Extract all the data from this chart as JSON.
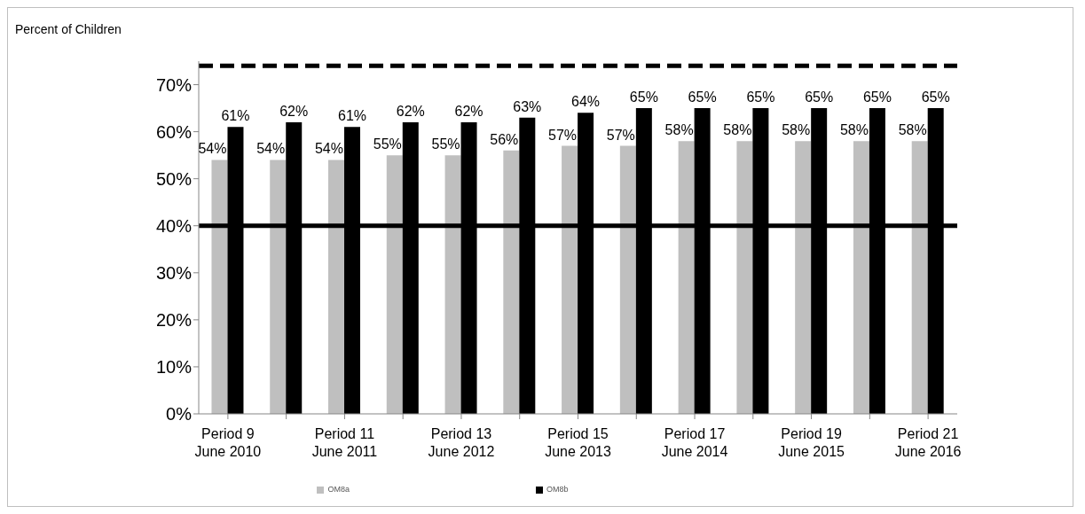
{
  "chart_data": {
    "type": "bar",
    "ylabel": "Percent of Children",
    "categories": [
      "Period 9\nJune 2010",
      null,
      "Period 11\nJune 2011",
      null,
      "Period 13\nJune 2012",
      null,
      "Period 15\nJune 2013",
      null,
      "Period 17\nJune 2014",
      null,
      "Period 19\nJune 2015",
      null,
      "Period 21\nJune 2016"
    ],
    "series": [
      {
        "name": "OM8a",
        "color": "#bfbfbf",
        "values": [
          54,
          54,
          54,
          55,
          55,
          56,
          57,
          57,
          58,
          58,
          58,
          58,
          58
        ],
        "value_labels": [
          "54%",
          "54%",
          "54%",
          "55%",
          "55%",
          "56%",
          "57%",
          "57%",
          "58%",
          "58%",
          "58%",
          "58%",
          "58%"
        ]
      },
      {
        "name": "OM8b",
        "color": "#000000",
        "values": [
          61,
          62,
          61,
          62,
          62,
          63,
          64,
          65,
          65,
          65,
          65,
          65,
          65
        ],
        "value_labels": [
          "61%",
          "62%",
          "61%",
          "62%",
          "62%",
          "63%",
          "64%",
          "65%",
          "65%",
          "65%",
          "65%",
          "65%",
          "65%"
        ]
      }
    ],
    "ylim": [
      0,
      75
    ],
    "yticks": [
      {
        "value": 0,
        "label": "0%"
      },
      {
        "value": 10,
        "label": "10%"
      },
      {
        "value": 20,
        "label": "20%"
      },
      {
        "value": 30,
        "label": "30%"
      },
      {
        "value": 40,
        "label": "40%"
      },
      {
        "value": 50,
        "label": "50%"
      },
      {
        "value": 60,
        "label": "60%"
      },
      {
        "value": 70,
        "label": "70%"
      }
    ],
    "ref_lines": [
      {
        "axis": "y",
        "value": 74,
        "color": "#000000",
        "line_style": "dashed"
      },
      {
        "axis": "y",
        "value": 40,
        "color": "#000000",
        "line_style": "solid"
      }
    ],
    "legend": "bottom"
  }
}
